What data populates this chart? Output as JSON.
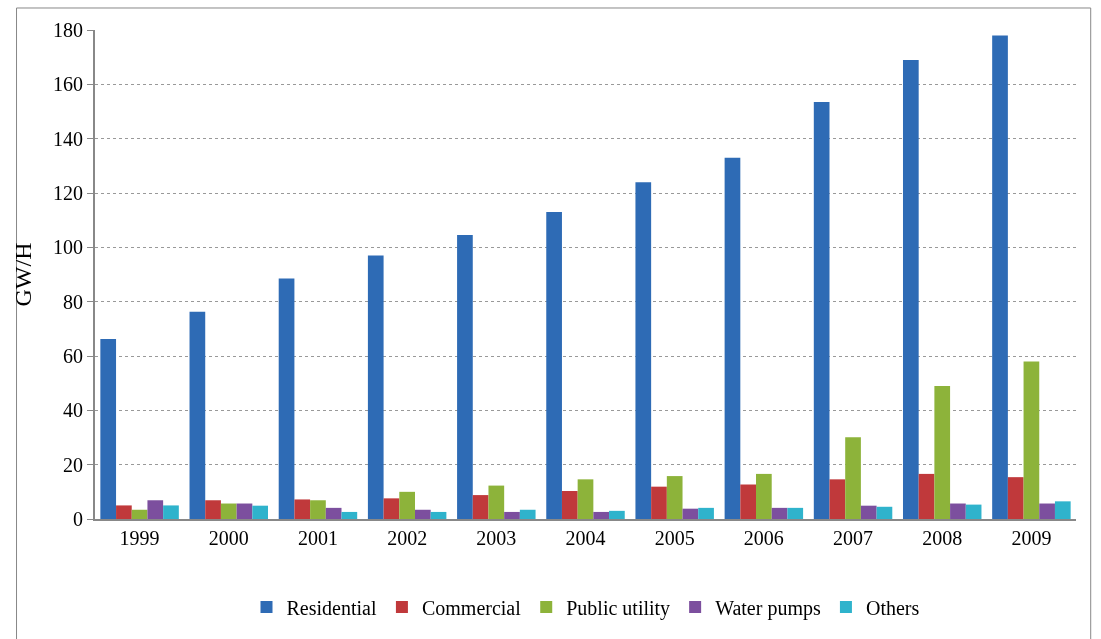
{
  "chart_data": {
    "type": "bar",
    "ylabel": "GW/H",
    "categories": [
      "1999",
      "2000",
      "2001",
      "2002",
      "2003",
      "2004",
      "2005",
      "2006",
      "2007",
      "2008",
      "2009"
    ],
    "series": [
      {
        "name": "Residential",
        "color": "#2e6bb5",
        "values": [
          66.3,
          76.3,
          88.5,
          97,
          104.5,
          113,
          124,
          133,
          153.5,
          169,
          178
        ]
      },
      {
        "name": "Commercial",
        "color": "#c0393b",
        "values": [
          5.0,
          6.9,
          7.2,
          7.6,
          8.8,
          10.3,
          11.9,
          12.7,
          14.6,
          16.6,
          15.4
        ]
      },
      {
        "name": "Public utility",
        "color": "#8db33a",
        "values": [
          3.4,
          5.7,
          6.9,
          10.0,
          12.3,
          14.6,
          15.8,
          16.6,
          30.1,
          49,
          58
        ]
      },
      {
        "name": "Water pumps",
        "color": "#7c4f9e",
        "values": [
          6.9,
          5.7,
          4.1,
          3.4,
          2.6,
          2.6,
          3.8,
          4.1,
          4.9,
          5.7,
          5.7
        ]
      },
      {
        "name": "Others",
        "color": "#2fb3cc",
        "values": [
          5.0,
          4.9,
          2.6,
          2.6,
          3.4,
          3.0,
          4.1,
          4.1,
          4.5,
          5.3,
          6.5
        ]
      }
    ],
    "ylim": [
      0,
      180
    ],
    "yticks": [
      0,
      20,
      40,
      60,
      80,
      100,
      120,
      140,
      160,
      180
    ],
    "grid": "y",
    "legend": "bottom"
  }
}
